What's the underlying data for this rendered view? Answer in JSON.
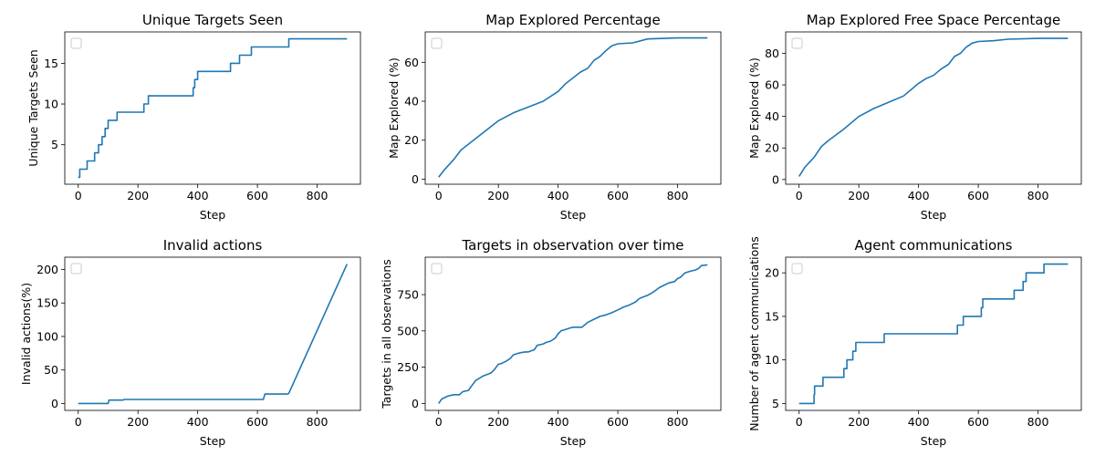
{
  "chart_data": [
    {
      "type": "line",
      "title": "Unique Targets Seen",
      "xlabel": "Step",
      "ylabel": "Unique Targets Seen",
      "xlim": [
        -45,
        945
      ],
      "ylim": [
        0.15,
        18.85
      ],
      "xticks": [
        0,
        200,
        400,
        600,
        800
      ],
      "yticks": [
        5,
        10,
        15
      ],
      "legend": "top-left (empty)",
      "color": "#1f77b4",
      "step": true,
      "x": [
        0,
        5,
        30,
        55,
        68,
        80,
        90,
        95,
        100,
        110,
        130,
        200,
        220,
        235,
        380,
        385,
        390,
        395,
        400,
        510,
        540,
        580,
        700,
        705,
        900
      ],
      "y": [
        1,
        2,
        3,
        4,
        5,
        6,
        7,
        7,
        8,
        8,
        9,
        9,
        10,
        11,
        11,
        12,
        13,
        13,
        14,
        15,
        16,
        17,
        17,
        18,
        18
      ]
    },
    {
      "type": "line",
      "title": "Map Explored Percentage",
      "xlabel": "Step",
      "ylabel": "Map Explored (%)",
      "xlim": [
        -45,
        945
      ],
      "ylim": [
        -2.6,
        75.6
      ],
      "xticks": [
        0,
        200,
        400,
        600,
        800
      ],
      "yticks": [
        0,
        20,
        40,
        60
      ],
      "legend": "top-left (empty)",
      "color": "#1f77b4",
      "x": [
        0,
        20,
        50,
        75,
        100,
        150,
        200,
        225,
        250,
        300,
        350,
        400,
        425,
        450,
        475,
        500,
        520,
        540,
        560,
        580,
        600,
        650,
        700,
        800,
        900
      ],
      "y": [
        1,
        5,
        10,
        15,
        18,
        24,
        30,
        32,
        34,
        37,
        40,
        45,
        49,
        52,
        55,
        57,
        61,
        63,
        66,
        68.5,
        69.5,
        70,
        72,
        72.5,
        72.5
      ]
    },
    {
      "type": "line",
      "title": "Map Explored Free Space Percentage",
      "xlabel": "Step",
      "ylabel": "Map Explored (%)",
      "xlim": [
        -45,
        945
      ],
      "ylim": [
        -3.0,
        93.6
      ],
      "xticks": [
        0,
        200,
        400,
        600,
        800
      ],
      "yticks": [
        0,
        20,
        40,
        60,
        80
      ],
      "legend": "top-left (empty)",
      "color": "#1f77b4",
      "x": [
        0,
        20,
        50,
        75,
        100,
        150,
        200,
        250,
        300,
        350,
        400,
        425,
        450,
        475,
        500,
        520,
        540,
        560,
        580,
        600,
        650,
        700,
        800,
        900
      ],
      "y": [
        2,
        8,
        14,
        21,
        25,
        32,
        40,
        45,
        49,
        53,
        61,
        64,
        66,
        70,
        73,
        78,
        80,
        84,
        86.5,
        87.5,
        88,
        89,
        89.5,
        89.5
      ]
    },
    {
      "type": "line",
      "title": "Invalid actions",
      "xlabel": "Step",
      "ylabel": "Invalid actions(%)",
      "xlim": [
        -45,
        945
      ],
      "ylim": [
        -10.4,
        218.4
      ],
      "xticks": [
        0,
        200,
        400,
        600,
        800
      ],
      "yticks": [
        0,
        50,
        100,
        150,
        200
      ],
      "legend": "top-left (empty)",
      "color": "#1f77b4",
      "x": [
        0,
        100,
        103,
        150,
        153,
        620,
        625,
        700,
        705,
        900
      ],
      "y": [
        0,
        0,
        5,
        5,
        6,
        6,
        14,
        14,
        15,
        208
      ]
    },
    {
      "type": "line",
      "title": "Targets in observation over time",
      "xlabel": "Step",
      "ylabel": "Targets in all observations",
      "xlim": [
        -45,
        945
      ],
      "ylim": [
        -48,
        1008
      ],
      "xticks": [
        0,
        200,
        400,
        600,
        800
      ],
      "yticks": [
        0,
        250,
        500,
        750
      ],
      "legend": "top-left (empty)",
      "color": "#1f77b4",
      "x": [
        0,
        10,
        30,
        50,
        70,
        80,
        100,
        110,
        125,
        150,
        175,
        185,
        200,
        210,
        225,
        240,
        250,
        265,
        275,
        290,
        300,
        320,
        330,
        350,
        360,
        375,
        390,
        400,
        410,
        425,
        440,
        450,
        480,
        500,
        520,
        540,
        560,
        580,
        600,
        620,
        640,
        660,
        670,
        680,
        700,
        720,
        740,
        760,
        770,
        790,
        800,
        810,
        825,
        840,
        860,
        870,
        880,
        900
      ],
      "y": [
        0,
        30,
        50,
        60,
        60,
        80,
        90,
        120,
        160,
        190,
        210,
        230,
        270,
        275,
        290,
        310,
        335,
        345,
        350,
        355,
        355,
        370,
        400,
        410,
        420,
        430,
        450,
        480,
        500,
        510,
        520,
        525,
        525,
        560,
        580,
        600,
        610,
        625,
        645,
        665,
        680,
        700,
        720,
        730,
        745,
        770,
        800,
        820,
        830,
        840,
        860,
        870,
        900,
        910,
        920,
        930,
        950,
        955
      ]
    },
    {
      "type": "line",
      "title": "Agent communications",
      "xlabel": "Step",
      "ylabel": "Number of agent communications",
      "xlim": [
        -45,
        945
      ],
      "ylim": [
        4.2,
        21.8
      ],
      "xticks": [
        0,
        200,
        400,
        600,
        800
      ],
      "yticks": [
        5,
        10,
        15,
        20
      ],
      "legend": "top-left (empty)",
      "color": "#1f77b4",
      "step": true,
      "x": [
        0,
        50,
        52,
        55,
        80,
        150,
        160,
        170,
        180,
        190,
        280,
        285,
        530,
        550,
        610,
        615,
        620,
        720,
        750,
        760,
        820,
        900
      ],
      "y": [
        5,
        6,
        7,
        7,
        8,
        9,
        10,
        10,
        11,
        12,
        12,
        13,
        14,
        15,
        16,
        17,
        17,
        18,
        19,
        20,
        21,
        21
      ]
    }
  ]
}
